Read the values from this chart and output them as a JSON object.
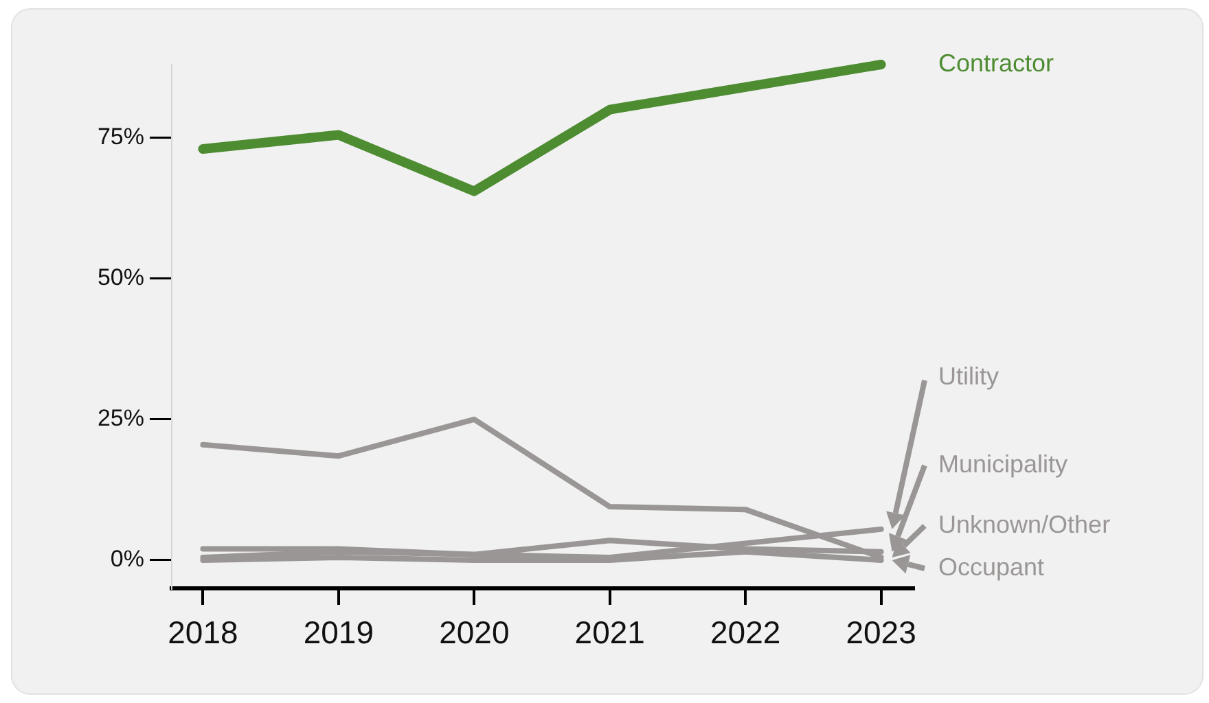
{
  "chart_data": {
    "type": "line",
    "x": [
      2018,
      2019,
      2020,
      2021,
      2022,
      2023
    ],
    "xlim": [
      2017.77,
      2023.24
    ],
    "xticks": [
      2018,
      2019,
      2020,
      2021,
      2022,
      2023
    ],
    "ylim": [
      -5,
      88
    ],
    "legend": "right",
    "yticks": [
      {
        "value": 0,
        "label": "0%"
      },
      {
        "value": 25,
        "label": "25%"
      },
      {
        "value": 50,
        "label": "50%"
      },
      {
        "value": 75,
        "label": "75%"
      }
    ],
    "grid": false,
    "marker": "none",
    "line_style": "solid",
    "series": [
      {
        "name": "Contractor",
        "color": "#4e8c32",
        "values": [
          73,
          75.5,
          65.5,
          80,
          84,
          88
        ]
      },
      {
        "name": "Utility",
        "color": "#9a9696",
        "values": [
          0.5,
          1.5,
          1,
          0.5,
          3,
          5.5
        ]
      },
      {
        "name": "Municipality",
        "color": "#9a9696",
        "values": [
          2,
          2,
          1,
          3.5,
          2,
          1.5
        ]
      },
      {
        "name": "Unknown/Other",
        "color": "#9a9696",
        "values": [
          20.5,
          18.5,
          25,
          9.5,
          9,
          0.5
        ]
      },
      {
        "name": "Occupant",
        "color": "#9a9696",
        "values": [
          0,
          0.5,
          0,
          0,
          1.5,
          0
        ]
      }
    ]
  }
}
